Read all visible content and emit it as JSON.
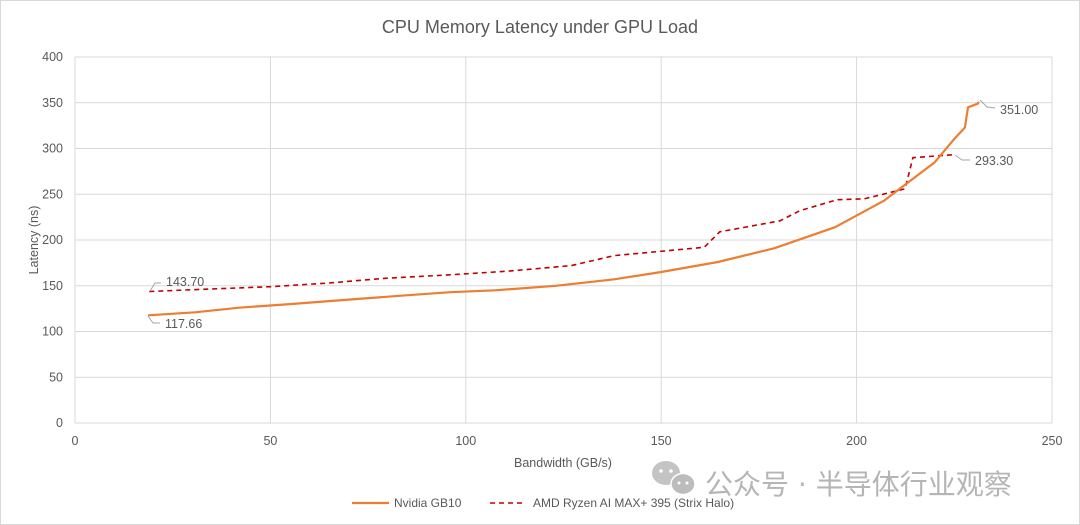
{
  "chart_data": {
    "type": "line",
    "title": "CPU Memory Latency under GPU Load",
    "xlabel": "Bandwidth (GB/s)",
    "ylabel": "Latency (ns)",
    "xlim": [
      0,
      250
    ],
    "ylim": [
      0,
      400
    ],
    "xticks": [
      0,
      50,
      100,
      150,
      200,
      250
    ],
    "yticks": [
      0,
      50,
      100,
      150,
      200,
      250,
      300,
      350,
      400
    ],
    "grid": true,
    "legend_position": "bottom",
    "series": [
      {
        "name": "Nvidia GB10",
        "color": "#ED7D31",
        "style": "solid",
        "x": [
          18.7,
          30.7,
          42.0,
          55.0,
          70.4,
          83.0,
          96.0,
          107.5,
          123.0,
          138.0,
          150.0,
          164.5,
          179.0,
          194.5,
          207.0,
          220.0,
          224.7,
          227.7,
          228.5,
          231.0,
          231.3
        ],
        "y": [
          117.66,
          121,
          126,
          130,
          135,
          139,
          143,
          145,
          150,
          157,
          165,
          176,
          191,
          214,
          243,
          285,
          309,
          323,
          345,
          349,
          351.0
        ],
        "annotations": [
          {
            "x": 18.7,
            "y": 117.66,
            "label": "117.66"
          },
          {
            "x": 231.3,
            "y": 351.0,
            "label": "351.00"
          }
        ]
      },
      {
        "name": "AMD Ryzen AI MAX+ 395 (Strix Halo)",
        "color": "#C00000",
        "style": "dashed",
        "x": [
          19.0,
          32.0,
          50.0,
          65.0,
          79.0,
          96.0,
          111.0,
          127.0,
          138.0,
          161.0,
          165.0,
          180.4,
          185.5,
          195.0,
          202.0,
          212.4,
          214.4,
          225.0
        ],
        "y": [
          143.7,
          146,
          149,
          153,
          158,
          162,
          166,
          172,
          183,
          192,
          209,
          221,
          232,
          244,
          245,
          256,
          290,
          293.3
        ],
        "annotations": [
          {
            "x": 19.0,
            "y": 143.7,
            "label": "143.70"
          },
          {
            "x": 225.0,
            "y": 293.3,
            "label": "293.30"
          }
        ]
      }
    ]
  },
  "labels": {
    "title": "CPU Memory Latency under GPU Load",
    "xlabel": "Bandwidth (GB/s)",
    "ylabel": "Latency (ns)",
    "xticks": [
      "0",
      "50",
      "100",
      "150",
      "200",
      "250"
    ],
    "yticks": [
      "0",
      "50",
      "100",
      "150",
      "200",
      "250",
      "300",
      "350",
      "400"
    ],
    "annotations": {
      "gb10_start": "117.66",
      "gb10_end": "351.00",
      "amd_start": "143.70",
      "amd_end": "293.30"
    },
    "legend": {
      "series1": "Nvidia GB10",
      "series2": "AMD Ryzen AI MAX+ 395 (Strix Halo)"
    },
    "watermark": "公众号 · 半导体行业观察"
  },
  "colors": {
    "gb10": "#ED7D31",
    "amd": "#C00000",
    "grid": "#d9d9d9",
    "text": "#595959"
  }
}
